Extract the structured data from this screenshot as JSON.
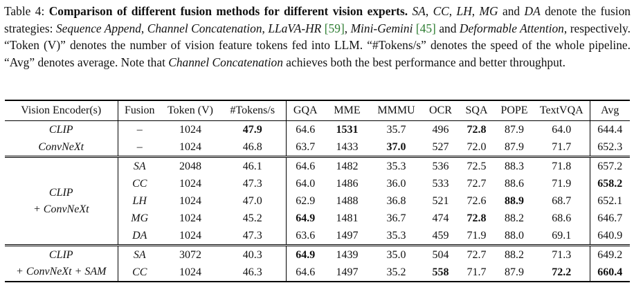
{
  "caption": {
    "label": "Table 4:",
    "title": "Comparison of different fusion methods for different vision experts.",
    "p1": " and ",
    "p2": " denote the fusion strategies: ",
    "cite_llava": "[59]",
    "cite_mini": "[45]",
    "p3": " and ",
    "p4": ", respectively. “Token (V)” denotes the number of vision feature tokens fed into LLM. “#Tokens/s” denotes the speed of the whole pipeline. “Avg” denotes average. Note that ",
    "p5": " achieves both the best performance and better throughput.",
    "abbr": [
      "SA",
      "CC",
      "LH",
      "MG",
      "DA"
    ],
    "names": [
      "Sequence Append",
      "Channel Concatenation",
      "LLaVA-HR",
      "Mini-Gemini",
      "Deformable Attention",
      "Channel Concatenation"
    ]
  },
  "table": {
    "headers": [
      "Vision Encoder(s)",
      "Fusion",
      "Token (V)",
      "#Tokens/s",
      "GQA",
      "MME",
      "MMMU",
      "OCR",
      "SQA",
      "POPE",
      "TextVQA",
      "Avg"
    ],
    "groups": [
      {
        "rows": [
          {
            "encoder": "CLIP",
            "cells": [
              "–",
              "1024",
              "47.9",
              "64.6",
              "1531",
              "35.7",
              "496",
              "72.8",
              "87.9",
              "64.0",
              "644.4"
            ],
            "bold": [
              2,
              4,
              7
            ]
          },
          {
            "encoder": "ConvNeXt",
            "cells": [
              "–",
              "1024",
              "46.8",
              "63.7",
              "1433",
              "37.0",
              "527",
              "72.0",
              "87.9",
              "71.7",
              "652.3"
            ],
            "bold": [
              5
            ]
          }
        ]
      },
      {
        "encoder_lines": [
          "CLIP",
          "+ ConvNeXt"
        ],
        "rows": [
          {
            "cells": [
              "SA",
              "2048",
              "46.1",
              "64.6",
              "1482",
              "35.3",
              "536",
              "72.5",
              "88.3",
              "71.8",
              "657.2"
            ],
            "bold": []
          },
          {
            "cells": [
              "CC",
              "1024",
              "47.3",
              "64.0",
              "1486",
              "36.0",
              "533",
              "72.7",
              "88.6",
              "71.9",
              "658.2"
            ],
            "bold": [
              10
            ]
          },
          {
            "cells": [
              "LH",
              "1024",
              "47.0",
              "62.9",
              "1488",
              "36.8",
              "521",
              "72.6",
              "88.9",
              "68.7",
              "652.1"
            ],
            "bold": [
              8
            ]
          },
          {
            "cells": [
              "MG",
              "1024",
              "45.2",
              "64.9",
              "1481",
              "36.7",
              "474",
              "72.8",
              "88.2",
              "68.6",
              "646.7"
            ],
            "bold": [
              3,
              7
            ]
          },
          {
            "cells": [
              "DA",
              "1024",
              "47.3",
              "63.6",
              "1497",
              "35.3",
              "459",
              "71.9",
              "88.0",
              "69.1",
              "640.9"
            ],
            "bold": []
          }
        ]
      },
      {
        "encoder_lines": [
          "CLIP",
          "+ ConvNeXt + SAM"
        ],
        "rows": [
          {
            "cells": [
              "SA",
              "3072",
              "40.3",
              "64.9",
              "1439",
              "35.0",
              "504",
              "72.7",
              "88.2",
              "71.3",
              "649.2"
            ],
            "bold": [
              3
            ]
          },
          {
            "cells": [
              "CC",
              "1024",
              "46.3",
              "64.6",
              "1497",
              "35.2",
              "558",
              "71.7",
              "87.9",
              "72.2",
              "660.4"
            ],
            "bold": [
              6,
              9,
              10
            ]
          }
        ]
      }
    ]
  }
}
